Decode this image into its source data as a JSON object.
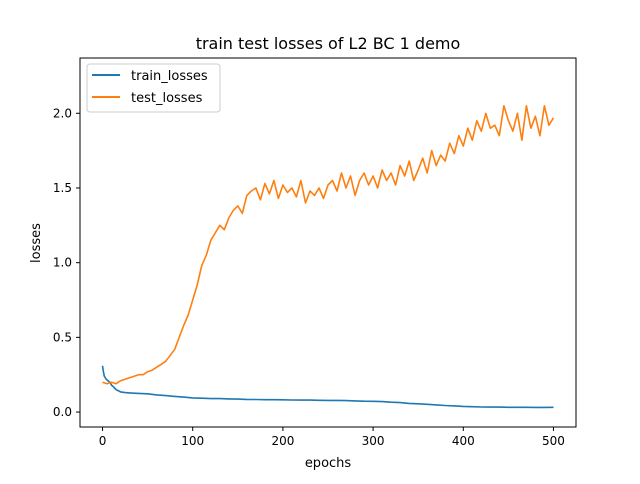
{
  "chart_data": {
    "type": "line",
    "title": "train test losses of L2 BC 1 demo",
    "xlabel": "epochs",
    "ylabel": "losses",
    "xlim": [
      -25,
      525
    ],
    "ylim": [
      -0.1,
      2.37
    ],
    "xticks": [
      0,
      100,
      200,
      300,
      400,
      500
    ],
    "yticks": [
      0.0,
      0.5,
      1.0,
      1.5,
      2.0
    ],
    "xtick_labels": [
      "0",
      "100",
      "200",
      "300",
      "400",
      "500"
    ],
    "ytick_labels": [
      "0.0",
      "0.5",
      "1.0",
      "1.5",
      "2.0"
    ],
    "legend": {
      "position": "top-left"
    },
    "grid": false,
    "series": [
      {
        "name": "train_losses",
        "color": "#1f77b4",
        "x": [
          0,
          1,
          2,
          4,
          6,
          8,
          10,
          12,
          15,
          20,
          25,
          30,
          40,
          50,
          60,
          70,
          80,
          90,
          100,
          110,
          120,
          130,
          140,
          150,
          160,
          170,
          180,
          190,
          200,
          210,
          220,
          230,
          240,
          250,
          260,
          270,
          280,
          290,
          300,
          310,
          320,
          330,
          340,
          350,
          360,
          370,
          380,
          390,
          400,
          410,
          420,
          430,
          440,
          450,
          460,
          470,
          480,
          490,
          500
        ],
        "y": [
          0.31,
          0.27,
          0.24,
          0.22,
          0.21,
          0.2,
          0.18,
          0.17,
          0.15,
          0.135,
          0.13,
          0.128,
          0.125,
          0.122,
          0.115,
          0.11,
          0.105,
          0.1,
          0.095,
          0.093,
          0.09,
          0.09,
          0.088,
          0.087,
          0.085,
          0.084,
          0.083,
          0.083,
          0.082,
          0.081,
          0.08,
          0.08,
          0.079,
          0.078,
          0.078,
          0.077,
          0.075,
          0.073,
          0.072,
          0.07,
          0.066,
          0.063,
          0.058,
          0.055,
          0.052,
          0.048,
          0.044,
          0.041,
          0.038,
          0.036,
          0.034,
          0.033,
          0.033,
          0.032,
          0.032,
          0.032,
          0.031,
          0.031,
          0.032
        ]
      },
      {
        "name": "test_losses",
        "color": "#ff7f0e",
        "x": [
          0,
          5,
          10,
          15,
          20,
          25,
          30,
          35,
          40,
          45,
          50,
          55,
          60,
          65,
          70,
          75,
          80,
          85,
          90,
          95,
          100,
          105,
          110,
          115,
          120,
          125,
          130,
          135,
          140,
          145,
          150,
          155,
          160,
          165,
          170,
          175,
          180,
          185,
          190,
          195,
          200,
          205,
          210,
          215,
          220,
          225,
          230,
          235,
          240,
          245,
          250,
          255,
          260,
          265,
          270,
          275,
          280,
          285,
          290,
          295,
          300,
          305,
          310,
          315,
          320,
          325,
          330,
          335,
          340,
          345,
          350,
          355,
          360,
          365,
          370,
          375,
          380,
          385,
          390,
          395,
          400,
          405,
          410,
          415,
          420,
          425,
          430,
          435,
          440,
          445,
          450,
          455,
          460,
          465,
          470,
          475,
          480,
          485,
          490,
          495,
          500
        ],
        "y": [
          0.2,
          0.19,
          0.2,
          0.19,
          0.21,
          0.22,
          0.23,
          0.24,
          0.25,
          0.25,
          0.27,
          0.28,
          0.3,
          0.32,
          0.34,
          0.38,
          0.42,
          0.5,
          0.58,
          0.65,
          0.75,
          0.85,
          0.98,
          1.05,
          1.15,
          1.2,
          1.25,
          1.22,
          1.3,
          1.35,
          1.38,
          1.33,
          1.45,
          1.48,
          1.5,
          1.42,
          1.53,
          1.46,
          1.55,
          1.43,
          1.52,
          1.47,
          1.5,
          1.44,
          1.55,
          1.4,
          1.48,
          1.45,
          1.5,
          1.43,
          1.52,
          1.55,
          1.48,
          1.6,
          1.5,
          1.58,
          1.45,
          1.55,
          1.6,
          1.52,
          1.58,
          1.5,
          1.62,
          1.55,
          1.6,
          1.52,
          1.65,
          1.58,
          1.68,
          1.55,
          1.62,
          1.7,
          1.6,
          1.75,
          1.65,
          1.72,
          1.68,
          1.8,
          1.73,
          1.85,
          1.78,
          1.9,
          1.82,
          1.95,
          1.88,
          2.0,
          1.9,
          1.92,
          1.85,
          2.05,
          1.95,
          1.88,
          2.0,
          1.82,
          2.05,
          1.9,
          1.98,
          1.85,
          2.05,
          1.92,
          1.97
        ]
      }
    ]
  }
}
